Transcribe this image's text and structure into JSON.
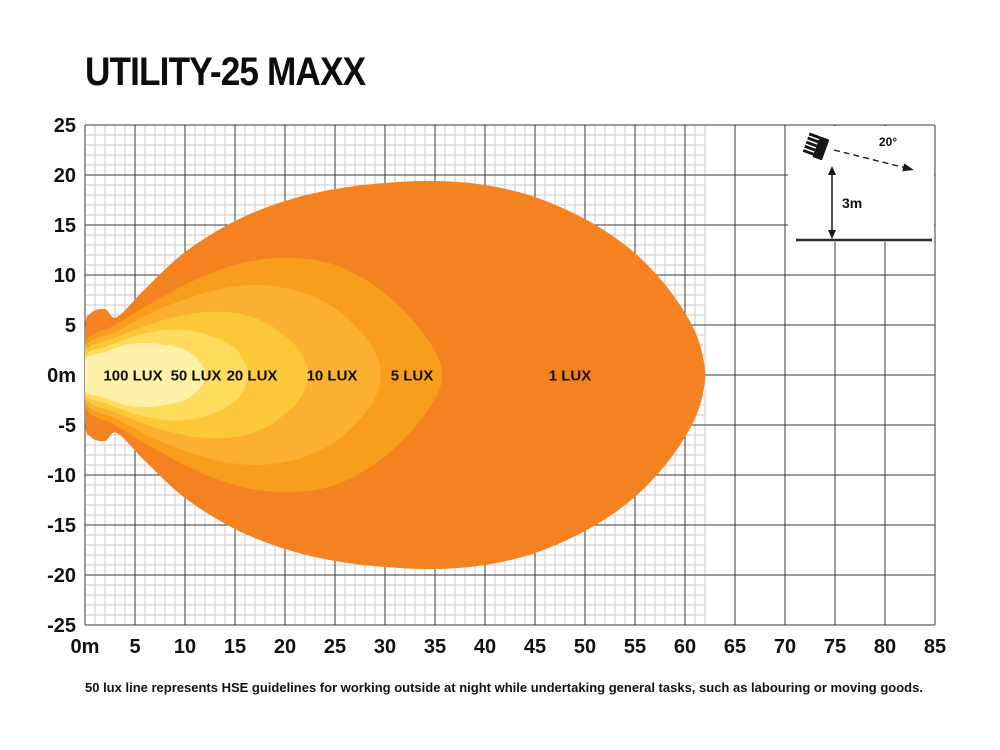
{
  "title": "UTILITY-25 MAXX",
  "footer_note": "50 lux line represents HSE guidelines for working outside at night while undertaking general tasks, such as labouring or moving goods.",
  "inset": {
    "angle_label": "20°",
    "height_label": "3m"
  },
  "chart_data": {
    "type": "isolux-contour",
    "title": "UTILITY-25 MAXX",
    "units": "m",
    "x_axis": {
      "min": 0,
      "max": 85,
      "major_step": 5,
      "minor_step": 1,
      "tick_labels": [
        "0m",
        "5",
        "10",
        "15",
        "20",
        "25",
        "30",
        "35",
        "40",
        "45",
        "50",
        "55",
        "60",
        "65",
        "70",
        "75",
        "80",
        "85"
      ]
    },
    "y_axis": {
      "min": -25,
      "max": 25,
      "major_step": 5,
      "minor_step": 1,
      "tick_labels": [
        "25",
        "20",
        "15",
        "10",
        "5",
        "0m",
        "-5",
        "-10",
        "-15",
        "-20",
        "-25"
      ]
    },
    "minor_grid_x_max": 62,
    "grid": {
      "minor_color": "#c9c9c9",
      "major_color": "#3a3a3a"
    },
    "contours": [
      {
        "label": "1 LUX",
        "lux": 1,
        "color": "#F58220",
        "label_x": 48.5,
        "points_top": [
          [
            0,
            4.5
          ],
          [
            0.6,
            6.2
          ],
          [
            2,
            6.6
          ],
          [
            3.2,
            5.8
          ],
          [
            6,
            8.6
          ],
          [
            10,
            12.3
          ],
          [
            15,
            15.4
          ],
          [
            20,
            17.4
          ],
          [
            25,
            18.6
          ],
          [
            30,
            19.2
          ],
          [
            35,
            19.4
          ],
          [
            40,
            19.0
          ],
          [
            45,
            17.8
          ],
          [
            50,
            15.6
          ],
          [
            54,
            13.0
          ],
          [
            57,
            10.2
          ],
          [
            59.5,
            7.0
          ],
          [
            61.3,
            3.6
          ],
          [
            62,
            0
          ]
        ]
      },
      {
        "label": "5 LUX",
        "lux": 5,
        "color": "#F99D1C",
        "label_x": 32.7,
        "points_top": [
          [
            0,
            3.1
          ],
          [
            3,
            5.0
          ],
          [
            7,
            7.4
          ],
          [
            11,
            9.5
          ],
          [
            15,
            11.0
          ],
          [
            19,
            11.7
          ],
          [
            23,
            11.5
          ],
          [
            26,
            10.6
          ],
          [
            29,
            8.9
          ],
          [
            31.5,
            6.8
          ],
          [
            33.8,
            4.2
          ],
          [
            35.3,
            1.8
          ],
          [
            35.7,
            0
          ]
        ]
      },
      {
        "label": "10 LUX",
        "lux": 10,
        "color": "#FBB031",
        "label_x": 24.7,
        "points_top": [
          [
            0,
            2.7
          ],
          [
            3,
            4.3
          ],
          [
            7,
            6.4
          ],
          [
            11,
            7.9
          ],
          [
            14,
            8.7
          ],
          [
            17,
            9.0
          ],
          [
            20,
            8.7
          ],
          [
            23,
            7.8
          ],
          [
            25.5,
            6.3
          ],
          [
            27.5,
            4.4
          ],
          [
            29,
            2.3
          ],
          [
            29.6,
            0
          ]
        ]
      },
      {
        "label": "20 LUX",
        "lux": 20,
        "color": "#FDC838",
        "label_x": 16.7,
        "points_top": [
          [
            0,
            2.3
          ],
          [
            3,
            3.7
          ],
          [
            6,
            4.9
          ],
          [
            9,
            5.8
          ],
          [
            12,
            6.3
          ],
          [
            15,
            6.2
          ],
          [
            17.5,
            5.5
          ],
          [
            19.5,
            4.3
          ],
          [
            21.3,
            2.6
          ],
          [
            22.4,
            0
          ]
        ]
      },
      {
        "label": "50 LUX",
        "lux": 50,
        "color": "#FFDC5E",
        "label_x": 11.1,
        "points_top": [
          [
            0,
            1.9
          ],
          [
            2,
            2.8
          ],
          [
            5,
            3.9
          ],
          [
            8,
            4.5
          ],
          [
            10,
            4.5
          ],
          [
            12,
            4.1
          ],
          [
            14,
            3.3
          ],
          [
            15.5,
            2.1
          ],
          [
            16.3,
            0
          ]
        ]
      },
      {
        "label": "100 LUX",
        "lux": 100,
        "color": "#FFF1A8",
        "label_x": 4.8,
        "points_top": [
          [
            0,
            1.5
          ],
          [
            2,
            2.3
          ],
          [
            4,
            3.0
          ],
          [
            6,
            3.2
          ],
          [
            8,
            3.0
          ],
          [
            10,
            2.5
          ],
          [
            11.4,
            1.4
          ],
          [
            12.1,
            0
          ]
        ]
      }
    ]
  }
}
